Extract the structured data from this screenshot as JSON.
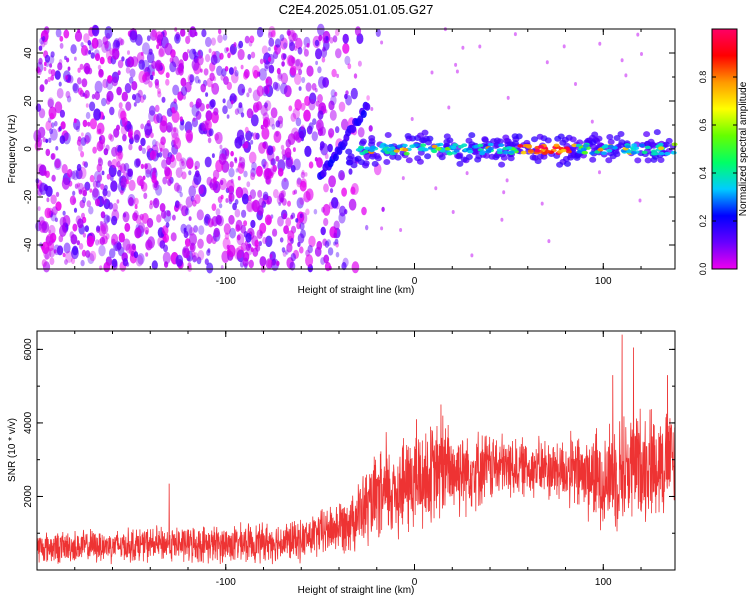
{
  "title": "C2E4.2025.051.01.05.G27",
  "chart_data": [
    {
      "type": "heatmap",
      "xlabel": "Height of straight line (km)",
      "ylabel": "Frequency (Hz)",
      "xlim": [
        -200,
        138
      ],
      "ylim": [
        -50,
        50
      ],
      "x_ticks": [
        -100,
        0,
        100
      ],
      "y_ticks": [
        -40,
        -20,
        0,
        20,
        40
      ],
      "colorbar": {
        "label": "Normalized spectral amplitude",
        "range": [
          0.0,
          1.0
        ],
        "ticks": [
          0.0,
          0.2,
          0.4,
          0.6,
          0.8
        ],
        "colormap": [
          "#ee00ee",
          "#6600ff",
          "#0000ff",
          "#00ccff",
          "#00ff66",
          "#66ff00",
          "#ffff00",
          "#ff9900",
          "#ff0000",
          "#ff0066"
        ]
      },
      "features": {
        "noise_region_x": [
          -200,
          -25
        ],
        "rising_streak": {
          "x": [
            -50,
            -25
          ],
          "y": [
            -12,
            18
          ]
        },
        "signal_band": {
          "x": [
            -35,
            138
          ],
          "y_center": 0,
          "peak_x": [
            55,
            85
          ]
        }
      }
    },
    {
      "type": "line",
      "xlabel": "Height of straight line (km)",
      "ylabel": "SNR (10 * v/v)",
      "xlim": [
        -200,
        138
      ],
      "ylim": [
        0,
        6500
      ],
      "x_ticks": [
        -100,
        0,
        100
      ],
      "y_ticks": [
        2000,
        4000,
        6000
      ],
      "color": "#ee3333",
      "envelope": {
        "x": [
          -200,
          -140,
          -100,
          -60,
          -40,
          -30,
          -20,
          -10,
          0,
          10,
          20,
          40,
          60,
          80,
          100,
          110,
          120,
          138
        ],
        "mean": [
          600,
          700,
          700,
          800,
          1200,
          1500,
          1900,
          2200,
          2400,
          2600,
          2700,
          2800,
          2800,
          2700,
          2500,
          2700,
          2900,
          3000
        ],
        "amp": [
          500,
          550,
          600,
          650,
          850,
          1100,
          1400,
          1600,
          1700,
          1600,
          1500,
          1100,
          900,
          1100,
          1600,
          1800,
          1800,
          1700
        ]
      },
      "spikes": [
        {
          "x": -130,
          "y": 2350
        },
        {
          "x": -15,
          "y": 3750
        },
        {
          "x": 1,
          "y": 4100
        },
        {
          "x": 14,
          "y": 4500
        },
        {
          "x": 15,
          "y": 4200
        },
        {
          "x": 105,
          "y": 5300
        },
        {
          "x": 110,
          "y": 6400
        },
        {
          "x": 116,
          "y": 6050
        },
        {
          "x": 134,
          "y": 5300
        }
      ]
    }
  ]
}
